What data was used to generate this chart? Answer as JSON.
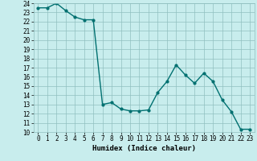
{
  "x": [
    0,
    1,
    2,
    3,
    4,
    5,
    6,
    7,
    8,
    9,
    10,
    11,
    12,
    13,
    14,
    15,
    16,
    17,
    18,
    19,
    20,
    21,
    22,
    23
  ],
  "y": [
    23.5,
    23.5,
    24.0,
    23.2,
    22.5,
    22.2,
    22.2,
    13.0,
    13.2,
    12.5,
    12.3,
    12.3,
    12.4,
    14.3,
    15.5,
    17.3,
    16.2,
    15.3,
    16.4,
    15.5,
    13.5,
    12.2,
    10.3,
    10.3
  ],
  "line_color": "#007070",
  "marker": "o",
  "marker_size": 2,
  "linewidth": 1.0,
  "xlabel": "Humidex (Indice chaleur)",
  "ylim": [
    10,
    24
  ],
  "xlim": [
    -0.5,
    23.5
  ],
  "yticks": [
    10,
    11,
    12,
    13,
    14,
    15,
    16,
    17,
    18,
    19,
    20,
    21,
    22,
    23,
    24
  ],
  "xticks": [
    0,
    1,
    2,
    3,
    4,
    5,
    6,
    7,
    8,
    9,
    10,
    11,
    12,
    13,
    14,
    15,
    16,
    17,
    18,
    19,
    20,
    21,
    22,
    23
  ],
  "bg_color": "#c8eded",
  "grid_color": "#90c0c0",
  "label_fontsize": 6.5,
  "tick_fontsize": 5.5
}
